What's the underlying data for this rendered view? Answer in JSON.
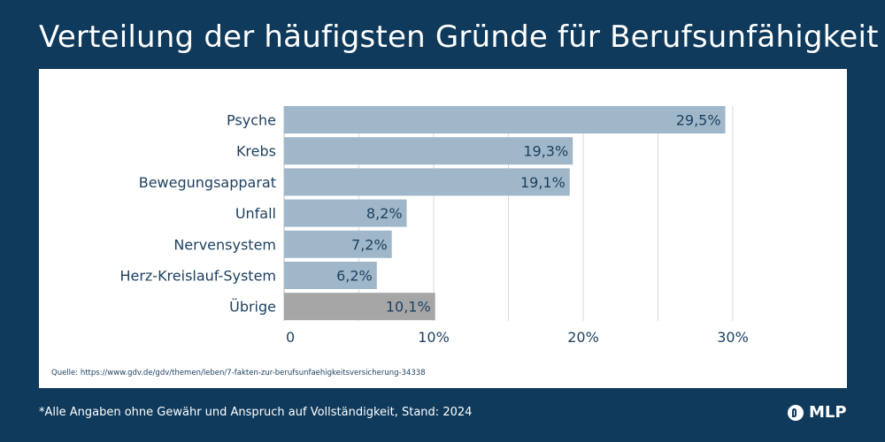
{
  "title": "Verteilung der häufigsten Gründe für Berufsunfähigkeit",
  "source": "Quelle: https://www.gdv.de/gdv/themen/leben/7-fakten-zur-berufsunfaehigkeitsversicherung-34338",
  "footnote": "*Alle Angaben ohne Gewähr und Anspruch auf Vollständigkeit, Stand: 2024",
  "logo_text": "MLP",
  "colors": {
    "background": "#0f3a5b",
    "bar": "#9fb7c9",
    "bar_other": "#a6a6a6",
    "text": "#1c3f5f",
    "grid": "#d9d9d9"
  },
  "chart_data": {
    "type": "bar",
    "orientation": "horizontal",
    "categories": [
      "Psyche",
      "Krebs",
      "Bewegungsapparat",
      "Unfall",
      "Nervensystem",
      "Herz-Kreislauf-System",
      "Übrige"
    ],
    "values": [
      29.5,
      19.3,
      19.1,
      8.2,
      7.2,
      6.2,
      10.1
    ],
    "value_labels": [
      "29,5%",
      "19,3%",
      "19,1%",
      "8,2%",
      "7,2%",
      "6,2%",
      "10,1%"
    ],
    "highlight_gray": [
      "Übrige"
    ],
    "xlim": [
      0,
      35
    ],
    "xticks": [
      0,
      10,
      20,
      30
    ],
    "xtick_labels": [
      "0",
      "10%",
      "20%",
      "30%"
    ],
    "grid": true,
    "legend": "none"
  }
}
